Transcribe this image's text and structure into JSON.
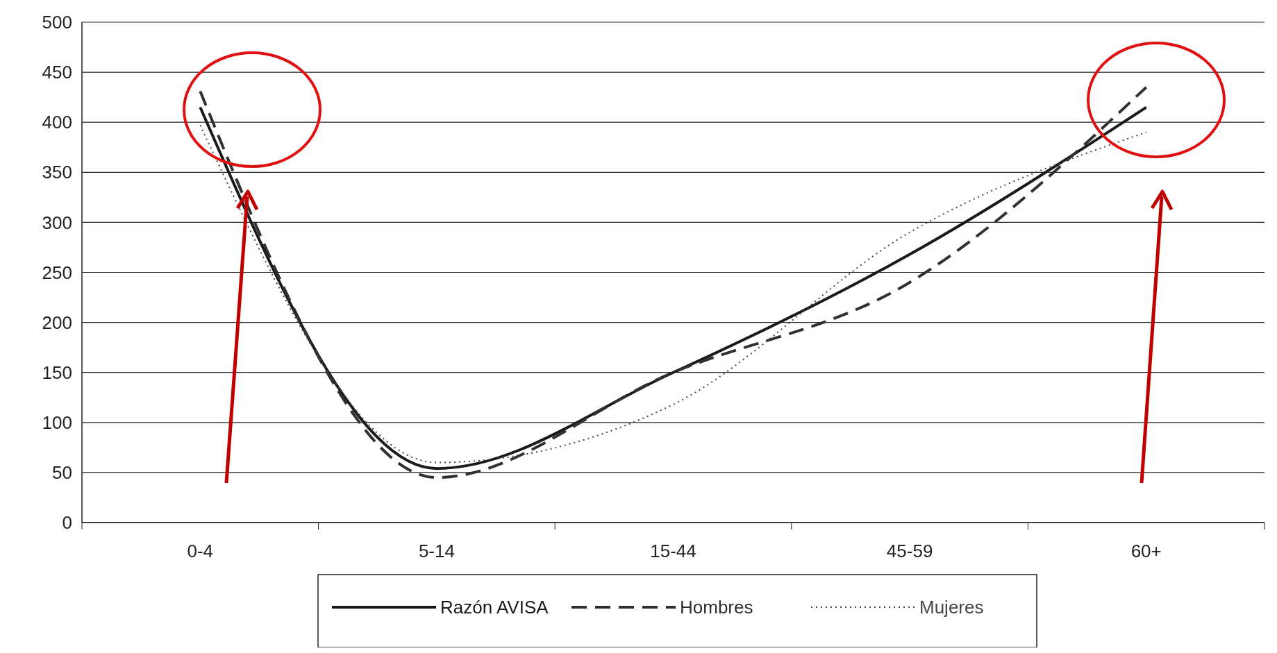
{
  "chart_data": {
    "type": "line",
    "categories": [
      "0-4",
      "5-14",
      "15-44",
      "45-59",
      "60+"
    ],
    "series": [
      {
        "name": "Razón AVISA",
        "color": "#1a1a1a",
        "line_style": "solid",
        "values": [
          415,
          54,
          150,
          268,
          415
        ]
      },
      {
        "name": "Hombres",
        "color": "#303030",
        "line_style": "dashed",
        "values": [
          431,
          45,
          150,
          240,
          435
        ]
      },
      {
        "name": "Mujeres",
        "color": "#444444",
        "line_style": "dotted",
        "values": [
          397,
          60,
          118,
          290,
          390
        ]
      }
    ],
    "ylim": [
      0,
      500
    ],
    "yticks": [
      0,
      50,
      100,
      150,
      200,
      250,
      300,
      350,
      400,
      450,
      500
    ],
    "grid": "y",
    "legend": "bottom"
  }
}
